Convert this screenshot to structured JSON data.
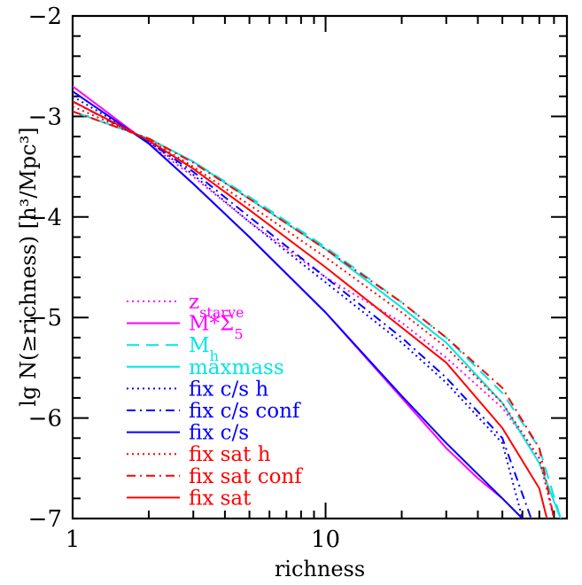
{
  "chart_data": {
    "type": "line",
    "xlabel": "richness",
    "ylabel": "lg N(≥richness) [h³/Mpc³]",
    "xscale": "log",
    "xlim": [
      1,
      90
    ],
    "ylim": [
      -7,
      -2
    ],
    "xticks": [
      {
        "value": 1,
        "label": "1"
      },
      {
        "value": 10,
        "label": "10"
      }
    ],
    "yticks": [
      {
        "value": -7,
        "label": "−7"
      },
      {
        "value": -6,
        "label": "−6"
      },
      {
        "value": -5,
        "label": "−5"
      },
      {
        "value": -4,
        "label": "−4"
      },
      {
        "value": -3,
        "label": "−3"
      },
      {
        "value": -2,
        "label": "−2"
      }
    ],
    "grid": false,
    "legend_position": "bottom-left",
    "series": [
      {
        "name": "z_starve",
        "label_main": "z",
        "label_sub": "starve",
        "color": "#ff00ff",
        "dash": "dotted",
        "x": [
          1,
          2,
          3,
          5,
          10,
          20,
          30,
          50,
          70,
          80
        ],
        "y": [
          -2.75,
          -3.27,
          -3.6,
          -4.05,
          -4.6,
          -5.05,
          -5.4,
          -5.9,
          -6.4,
          -7.0
        ]
      },
      {
        "name": "M*Σ5",
        "label_main": "M*Σ",
        "label_sub": "5",
        "color": "#ff00ff",
        "dash": "solid",
        "x": [
          1,
          2,
          3,
          5,
          10,
          20,
          30,
          40,
          50,
          60
        ],
        "y": [
          -2.7,
          -3.27,
          -3.67,
          -4.2,
          -4.95,
          -5.8,
          -6.3,
          -6.6,
          -6.8,
          -7.0
        ]
      },
      {
        "name": "M_h",
        "label_main": "M",
        "label_sub": "h",
        "color": "#00e5e5",
        "dash": "dashed",
        "x": [
          1,
          2,
          3,
          5,
          10,
          20,
          30,
          50,
          70,
          85
        ],
        "y": [
          -2.95,
          -3.22,
          -3.45,
          -3.8,
          -4.3,
          -4.85,
          -5.2,
          -5.75,
          -6.3,
          -7.0
        ]
      },
      {
        "name": "maxmass",
        "label_main": "maxmass",
        "label_sub": "",
        "color": "#00e5e5",
        "dash": "solid",
        "x": [
          1,
          2,
          3,
          5,
          10,
          20,
          30,
          50,
          70,
          85
        ],
        "y": [
          -2.95,
          -3.22,
          -3.45,
          -3.82,
          -4.32,
          -4.9,
          -5.25,
          -5.85,
          -6.45,
          -7.0
        ]
      },
      {
        "name": "fix c/s h",
        "label_main": "fix c/s h",
        "label_sub": "",
        "color": "#0000ff",
        "dash": "dotted",
        "x": [
          1,
          2,
          3,
          5,
          10,
          20,
          30,
          50,
          60
        ],
        "y": [
          -2.8,
          -3.25,
          -3.58,
          -4.05,
          -4.65,
          -5.25,
          -5.65,
          -6.25,
          -7.0
        ]
      },
      {
        "name": "fix c/s conf",
        "label_main": "fix c/s conf",
        "label_sub": "",
        "color": "#0000ff",
        "dash": "dashdot",
        "x": [
          1,
          2,
          3,
          5,
          10,
          20,
          30,
          50,
          65
        ],
        "y": [
          -2.85,
          -3.25,
          -3.55,
          -4.0,
          -4.6,
          -5.2,
          -5.6,
          -6.2,
          -7.0
        ]
      },
      {
        "name": "fix c/s",
        "label_main": "fix c/s",
        "label_sub": "",
        "color": "#0000ff",
        "dash": "solid",
        "x": [
          1,
          2,
          3,
          5,
          10,
          20,
          30,
          50,
          60
        ],
        "y": [
          -2.75,
          -3.27,
          -3.67,
          -4.2,
          -4.95,
          -5.78,
          -6.25,
          -6.8,
          -7.0
        ]
      },
      {
        "name": "fix sat h",
        "label_main": "fix sat h",
        "label_sub": "",
        "color": "#ff0000",
        "dash": "dotted",
        "x": [
          1,
          2,
          3,
          5,
          10,
          20,
          30,
          50,
          70,
          80
        ],
        "y": [
          -2.9,
          -3.23,
          -3.5,
          -3.88,
          -4.4,
          -4.95,
          -5.3,
          -5.85,
          -6.4,
          -7.0
        ]
      },
      {
        "name": "fix sat conf",
        "label_main": "fix sat conf",
        "label_sub": "",
        "color": "#ff0000",
        "dash": "dashdot",
        "x": [
          1,
          2,
          3,
          5,
          10,
          20,
          30,
          50,
          70,
          80
        ],
        "y": [
          -2.95,
          -3.22,
          -3.46,
          -3.82,
          -4.32,
          -4.85,
          -5.2,
          -5.7,
          -6.3,
          -7.0
        ]
      },
      {
        "name": "fix sat",
        "label_main": "fix sat",
        "label_sub": "",
        "color": "#ff0000",
        "dash": "solid",
        "x": [
          1,
          2,
          3,
          5,
          10,
          20,
          30,
          50,
          70,
          75
        ],
        "y": [
          -2.85,
          -3.24,
          -3.52,
          -3.93,
          -4.5,
          -5.1,
          -5.45,
          -6.1,
          -6.7,
          -7.0
        ]
      }
    ]
  }
}
